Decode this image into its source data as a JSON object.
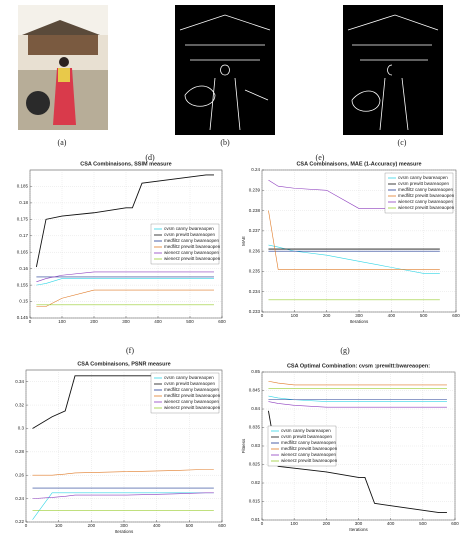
{
  "captions": [
    "(a)",
    "(b)",
    "(c)",
    "(d)",
    "(e)",
    "(f)",
    "(g)"
  ],
  "chart_data": [
    {
      "type": "line",
      "title": "CSA Combinaisons, SSIM measure",
      "legend": "center right",
      "grid": true,
      "xlim": [
        0,
        600
      ],
      "xticks": [
        0,
        100,
        200,
        300,
        400,
        500,
        600
      ],
      "ylim": [
        0.145,
        0.19
      ],
      "yticks": [
        0.145,
        0.15,
        0.155,
        0.16,
        0.165,
        0.17,
        0.175,
        0.18,
        0.185
      ],
      "x": [
        20,
        50,
        100,
        200,
        300,
        320,
        350,
        550,
        575
      ],
      "series": [
        {
          "name": "cvsm canny bwareaopen",
          "color": "#33d6e6",
          "values": [
            0.155,
            0.1555,
            0.157,
            0.157,
            0.157,
            0.157,
            0.157,
            0.157,
            0.157
          ]
        },
        {
          "name": "cvsm prewitt bwareaopen",
          "color": "#111111",
          "values": [
            0.1605,
            0.175,
            0.176,
            0.177,
            0.1785,
            0.1785,
            0.186,
            0.1885,
            0.1885
          ]
        },
        {
          "name": "medfilt2 canny bwareaopen",
          "color": "#1f3a93",
          "values": [
            0.1575,
            0.1575,
            0.1575,
            0.1575,
            0.1575,
            0.1575,
            0.1575,
            0.1575,
            0.1575
          ]
        },
        {
          "name": "medfilt2 prewitt bwareaopen",
          "color": "#e07b28",
          "values": [
            0.1485,
            0.1485,
            0.151,
            0.1535,
            0.1535,
            0.1535,
            0.1535,
            0.1535,
            0.1535
          ]
        },
        {
          "name": "wiener2 canny bwareaopen",
          "color": "#8e3fbf",
          "values": [
            0.156,
            0.157,
            0.158,
            0.159,
            0.159,
            0.159,
            0.159,
            0.159,
            0.159
          ]
        },
        {
          "name": "wiener2 prewitt bwareaopen",
          "color": "#9acd32",
          "values": [
            0.149,
            0.149,
            0.149,
            0.149,
            0.149,
            0.149,
            0.149,
            0.149,
            0.149
          ]
        }
      ]
    },
    {
      "type": "line",
      "title": "CSA Combinaisons, MAE (1-Accuracy) measure",
      "legend": "upper right",
      "grid": true,
      "xlabel": "Iterations",
      "ylabel": "MAE",
      "xlim": [
        0,
        600
      ],
      "xticks": [
        0,
        100,
        200,
        300,
        400,
        500,
        600
      ],
      "ylim": [
        0.233,
        0.24
      ],
      "yticks": [
        0.233,
        0.234,
        0.235,
        0.236,
        0.237,
        0.238,
        0.239,
        0.24
      ],
      "x": [
        20,
        50,
        100,
        200,
        300,
        400,
        500,
        550
      ],
      "series": [
        {
          "name": "cvsm canny bwareaopen",
          "color": "#33d6e6",
          "values": [
            0.2363,
            0.2362,
            0.236,
            0.2358,
            0.2355,
            0.2352,
            0.2349,
            0.2349
          ]
        },
        {
          "name": "cvsm prewitt bwareaopen",
          "color": "#111111",
          "values": [
            0.2361,
            0.2361,
            0.2361,
            0.2361,
            0.2361,
            0.2361,
            0.2361,
            0.2361
          ]
        },
        {
          "name": "medfilt2 canny bwareaopen",
          "color": "#1f3a93",
          "values": [
            0.236,
            0.236,
            0.236,
            0.236,
            0.236,
            0.236,
            0.236,
            0.236
          ]
        },
        {
          "name": "medfilt2 prewitt bwareaopen",
          "color": "#e07b28",
          "values": [
            0.238,
            0.2351,
            0.2351,
            0.2351,
            0.2351,
            0.2351,
            0.2351,
            0.2351
          ]
        },
        {
          "name": "wiener2 canny bwareaopen",
          "color": "#8e3fbf",
          "values": [
            0.2395,
            0.2392,
            0.2391,
            0.239,
            0.2381,
            0.2381,
            0.2381,
            0.2381
          ]
        },
        {
          "name": "wiener2 prewitt bwareaopen",
          "color": "#9acd32",
          "values": [
            0.2336,
            0.2336,
            0.2336,
            0.2336,
            0.2336,
            0.2336,
            0.2336,
            0.2336
          ]
        }
      ]
    },
    {
      "type": "line",
      "title": "CSA Combinaisons, PSNR measure",
      "legend": "upper right",
      "grid": true,
      "xlabel": "Iterations",
      "xlim": [
        0,
        600
      ],
      "xticks": [
        0,
        100,
        200,
        300,
        400,
        500,
        600
      ],
      "ylim": [
        0.22,
        0.35
      ],
      "yticks": [
        0.22,
        0.24,
        0.26,
        0.28,
        0.3,
        0.32,
        0.34
      ],
      "x": [
        20,
        80,
        120,
        150,
        300,
        450,
        550,
        575
      ],
      "series": [
        {
          "name": "cvsm canny bwareaopen",
          "color": "#33d6e6",
          "values": [
            0.222,
            0.245,
            0.245,
            0.245,
            0.245,
            0.245,
            0.245,
            0.245
          ]
        },
        {
          "name": "cvsm prewitt bwareaopen",
          "color": "#111111",
          "values": [
            0.3,
            0.31,
            0.315,
            0.345,
            0.345,
            0.345,
            0.345,
            0.345
          ]
        },
        {
          "name": "medfilt2 canny bwareaopen",
          "color": "#1f3a93",
          "values": [
            0.249,
            0.249,
            0.249,
            0.249,
            0.249,
            0.249,
            0.249,
            0.249
          ]
        },
        {
          "name": "medfilt2 prewitt bwareaopen",
          "color": "#e07b28",
          "values": [
            0.26,
            0.26,
            0.261,
            0.262,
            0.263,
            0.264,
            0.265,
            0.265
          ]
        },
        {
          "name": "wiener2 canny bwareaopen",
          "color": "#8e3fbf",
          "values": [
            0.24,
            0.241,
            0.242,
            0.243,
            0.243,
            0.244,
            0.245,
            0.245
          ]
        },
        {
          "name": "wiener2 prewitt bwareaopen",
          "color": "#9acd32",
          "values": [
            0.23,
            0.23,
            0.23,
            0.23,
            0.23,
            0.23,
            0.23,
            0.23
          ]
        }
      ]
    },
    {
      "type": "line",
      "title": "CSA Optimal Combination:  cvsm  :prewitt:bwareaopen:",
      "legend": "center left",
      "grid": true,
      "xlabel": "Iterations",
      "ylabel": "Fitness",
      "xlim": [
        0,
        600
      ],
      "xticks": [
        0,
        100,
        200,
        300,
        400,
        500,
        600
      ],
      "ylim": [
        0.81,
        0.85
      ],
      "yticks": [
        0.81,
        0.815,
        0.82,
        0.825,
        0.83,
        0.835,
        0.84,
        0.845,
        0.85
      ],
      "x": [
        20,
        50,
        100,
        200,
        300,
        320,
        350,
        550,
        575
      ],
      "series": [
        {
          "name": "cvsm canny bwareaopen",
          "color": "#33d6e6",
          "values": [
            0.8435,
            0.843,
            0.8425,
            0.842,
            0.842,
            0.842,
            0.842,
            0.842,
            0.842
          ]
        },
        {
          "name": "cvsm prewitt bwareaopen",
          "color": "#111111",
          "values": [
            0.8395,
            0.8245,
            0.824,
            0.823,
            0.8215,
            0.8215,
            0.8145,
            0.812,
            0.812
          ]
        },
        {
          "name": "medfilt2 canny bwareaopen",
          "color": "#1f3a93",
          "values": [
            0.8425,
            0.8425,
            0.8425,
            0.8425,
            0.8425,
            0.8425,
            0.8425,
            0.8425,
            0.8425
          ]
        },
        {
          "name": "medfilt2 prewitt bwareaopen",
          "color": "#e07b28",
          "values": [
            0.8475,
            0.847,
            0.8465,
            0.8465,
            0.8465,
            0.8465,
            0.8465,
            0.8465,
            0.8465
          ]
        },
        {
          "name": "wiener2 canny bwareaopen",
          "color": "#8e3fbf",
          "values": [
            0.842,
            0.8415,
            0.841,
            0.8405,
            0.8405,
            0.8405,
            0.8405,
            0.8405,
            0.8405
          ]
        },
        {
          "name": "wiener2 prewitt bwareaopen",
          "color": "#9acd32",
          "values": [
            0.8455,
            0.8455,
            0.8455,
            0.8455,
            0.8455,
            0.8455,
            0.8455,
            0.8455,
            0.8455
          ]
        }
      ]
    }
  ]
}
